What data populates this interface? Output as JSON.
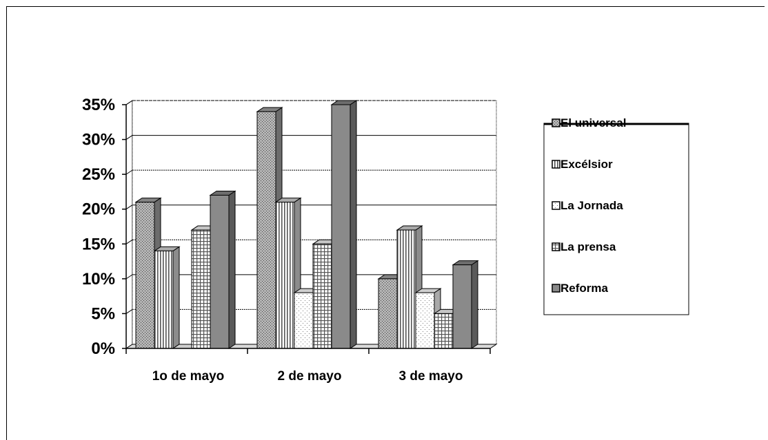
{
  "chart_data": {
    "type": "bar",
    "categories": [
      "1o de mayo",
      "2 de mayo",
      "3 de mayo"
    ],
    "series": [
      {
        "name": "El universal",
        "values": [
          21,
          34,
          10
        ],
        "color": "#9a9a9a",
        "pattern": "dots"
      },
      {
        "name": "Excélsior",
        "values": [
          14,
          21,
          17
        ],
        "color": "#c8c8c8",
        "pattern": "vlines"
      },
      {
        "name": "La Jornada",
        "values": [
          0,
          8,
          8
        ],
        "color": "#f2f2f2",
        "pattern": "sparse-dots"
      },
      {
        "name": "La prensa",
        "values": [
          17,
          15,
          5
        ],
        "color": "#e8e8e8",
        "pattern": "grid"
      },
      {
        "name": "Reforma",
        "values": [
          22,
          35,
          12
        ],
        "color": "#808080",
        "pattern": "solid"
      }
    ],
    "yticks": [
      "0%",
      "5%",
      "10%",
      "15%",
      "20%",
      "25%",
      "30%",
      "35%"
    ],
    "ylim": [
      0,
      35
    ],
    "ytick_step": 5,
    "grid": true,
    "legend_position": "right",
    "title": "",
    "xlabel": "",
    "ylabel": ""
  }
}
